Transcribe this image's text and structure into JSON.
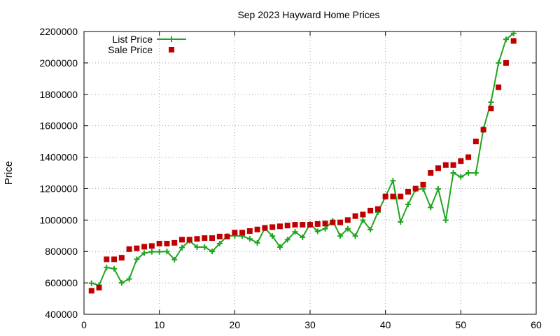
{
  "chart_data": {
    "type": "line",
    "title": "Sep 2023 Hayward Home Prices",
    "xlabel": "",
    "ylabel": "Price",
    "xlim": [
      0,
      60
    ],
    "ylim": [
      400000,
      2200000
    ],
    "xticks": [
      0,
      10,
      20,
      30,
      40,
      50,
      60
    ],
    "yticks": [
      400000,
      600000,
      800000,
      1000000,
      1200000,
      1400000,
      1600000,
      1800000,
      2000000,
      2200000
    ],
    "grid": true,
    "legend_position": "top-left",
    "x": [
      1,
      2,
      3,
      4,
      5,
      6,
      7,
      8,
      9,
      10,
      11,
      12,
      13,
      14,
      15,
      16,
      17,
      18,
      19,
      20,
      21,
      22,
      23,
      24,
      25,
      26,
      27,
      28,
      29,
      30,
      31,
      32,
      33,
      34,
      35,
      36,
      37,
      38,
      39,
      40,
      41,
      42,
      43,
      44,
      45,
      46,
      47,
      48,
      49,
      50,
      51,
      52,
      53,
      54,
      55,
      56,
      57
    ],
    "series": [
      {
        "name": "List Price",
        "style": "linespoints",
        "marker": "plus",
        "color": "#1fa51f",
        "values": [
          598000,
          585000,
          698000,
          690000,
          600000,
          625000,
          750000,
          790000,
          798000,
          798000,
          800000,
          748000,
          825000,
          868000,
          828000,
          828000,
          800000,
          850000,
          898000,
          900000,
          898000,
          880000,
          855000,
          948000,
          898000,
          828000,
          875000,
          925000,
          890000,
          975000,
          928000,
          945000,
          995000,
          898000,
          945000,
          898000,
          999000,
          939000,
          1050000,
          1150000,
          1250000,
          988000,
          1100000,
          1195000,
          1198000,
          1080000,
          1198000,
          999000,
          1300000,
          1275000,
          1300000,
          1300000,
          1580000,
          1750000,
          2000000,
          2150000,
          2188000
        ]
      },
      {
        "name": "Sale Price",
        "style": "points",
        "marker": "square",
        "color": "#c00000",
        "values": [
          550000,
          570000,
          750000,
          750000,
          760000,
          815000,
          820000,
          830000,
          835000,
          850000,
          850000,
          855000,
          875000,
          875000,
          880000,
          885000,
          885000,
          895000,
          895000,
          920000,
          920000,
          930000,
          940000,
          950000,
          955000,
          960000,
          965000,
          970000,
          970000,
          970000,
          975000,
          978000,
          985000,
          985000,
          1000000,
          1025000,
          1035000,
          1060000,
          1070000,
          1150000,
          1150000,
          1150000,
          1180000,
          1200000,
          1225000,
          1300000,
          1330000,
          1350000,
          1350000,
          1375000,
          1400000,
          1500000,
          1575000,
          1710000,
          1845000,
          2000000,
          2140000
        ]
      }
    ]
  }
}
